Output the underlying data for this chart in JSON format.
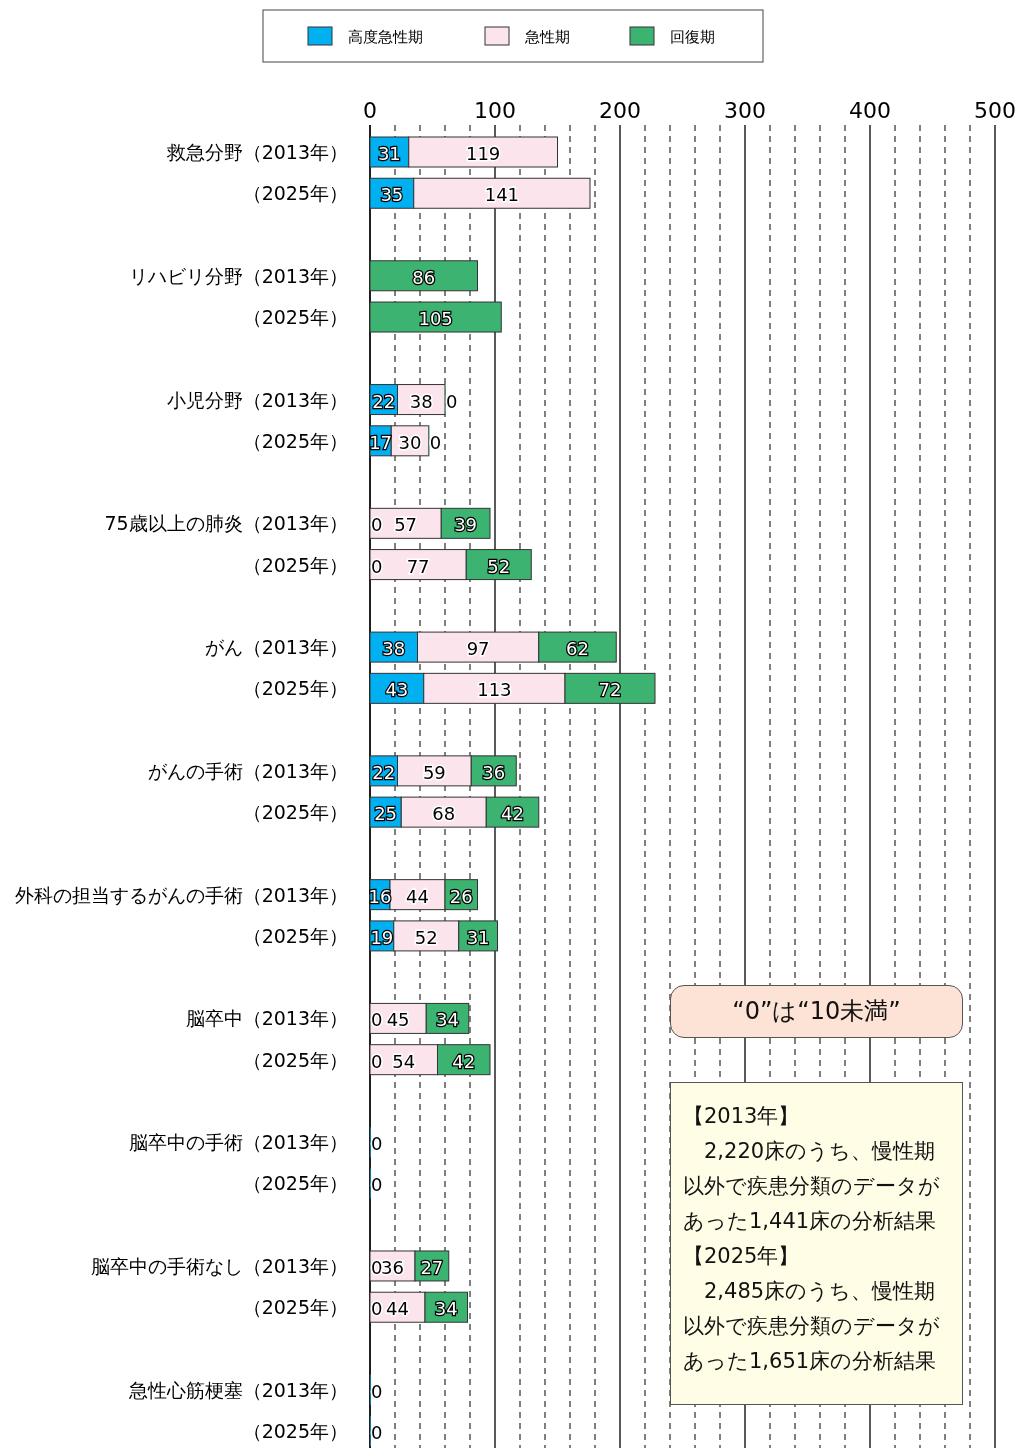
{
  "chart_data": {
    "type": "bar",
    "orientation": "horizontal",
    "stacked": true,
    "data_labels": true,
    "legend": "top",
    "grid": "x",
    "categories": [
      "救急分野（2013年）",
      "（2025年）",
      null,
      "リハビリ分野（2013年）",
      "（2025年）",
      null,
      "小児分野（2013年）",
      "（2025年）",
      null,
      "75歳以上の肺炎（2013年）",
      "（2025年）",
      null,
      "がん（2013年）",
      "（2025年）",
      null,
      "がんの手術（2013年）",
      "（2025年）",
      null,
      "外科の担当するがんの手術（2013年）",
      "（2025年）",
      null,
      "脳卒中（2013年）",
      "（2025年）",
      null,
      "脳卒中の手術（2013年）",
      "（2025年）",
      null,
      "脳卒中の手術なし（2013年）",
      "（2025年）",
      null,
      "急性心筋梗塞（2013年）",
      "（2025年）"
    ],
    "series": [
      {
        "name": "高度急性期",
        "color": "#00b0f0",
        "values": [
          31,
          35,
          null,
          null,
          null,
          null,
          22,
          17,
          null,
          0,
          0,
          null,
          38,
          43,
          null,
          22,
          25,
          null,
          16,
          19,
          null,
          0,
          0,
          null,
          0,
          0,
          null,
          0,
          0,
          null,
          0,
          0
        ]
      },
      {
        "name": "急性期",
        "color": "#fce4ec",
        "values": [
          119,
          141,
          null,
          null,
          null,
          null,
          38,
          30,
          null,
          57,
          77,
          null,
          97,
          113,
          null,
          59,
          68,
          null,
          44,
          52,
          null,
          45,
          54,
          null,
          null,
          null,
          null,
          36,
          44,
          null,
          null,
          null
        ]
      },
      {
        "name": "回復期",
        "color": "#3cb371",
        "values": [
          null,
          null,
          null,
          86,
          105,
          null,
          0,
          0,
          null,
          39,
          52,
          null,
          62,
          72,
          null,
          36,
          42,
          null,
          26,
          31,
          null,
          34,
          42,
          null,
          null,
          null,
          null,
          27,
          34,
          null,
          null,
          null
        ]
      }
    ],
    "xlim": [
      0,
      500
    ],
    "xticks": [
      0,
      {
        "value": 20,
        "label": null
      },
      {
        "value": 40,
        "label": null
      },
      {
        "value": 60,
        "label": null
      },
      {
        "value": 80,
        "label": null
      },
      100,
      {
        "value": 120,
        "label": null
      },
      {
        "value": 140,
        "label": null
      },
      {
        "value": 160,
        "label": null
      },
      {
        "value": 180,
        "label": null
      },
      200,
      {
        "value": 220,
        "label": null
      },
      {
        "value": 240,
        "label": null
      },
      {
        "value": 260,
        "label": null
      },
      {
        "value": 280,
        "label": null
      },
      300,
      {
        "value": 320,
        "label": null
      },
      {
        "value": 340,
        "label": null
      },
      {
        "value": 360,
        "label": null
      },
      {
        "value": 380,
        "label": null
      },
      400,
      {
        "value": 420,
        "label": null
      },
      {
        "value": 440,
        "label": null
      },
      {
        "value": 460,
        "label": null
      },
      {
        "value": 480,
        "label": null
      },
      500
    ],
    "annotations": [
      "“0”は“10未満”",
      "【2013年】",
      "　2,220床のうち、慢性期以外で疾患分類のデータがあった1,441床の分析結果",
      "【2025年】",
      "　2,485床のうち、慢性期以外で疾患分類のデータがあった1,651床の分析結果"
    ]
  }
}
